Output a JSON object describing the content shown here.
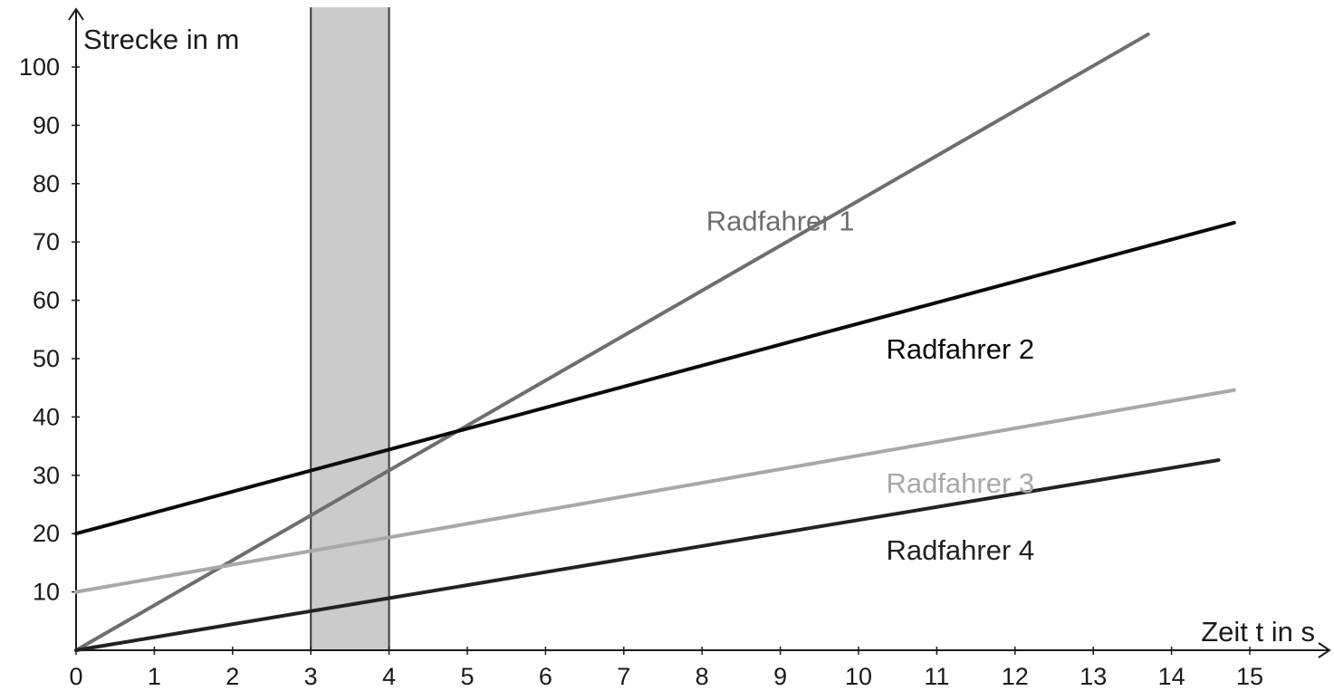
{
  "chart_data": {
    "type": "line",
    "xlabel": "Zeit t in s",
    "ylabel": "Strecke in m",
    "xlim": [
      0,
      16
    ],
    "ylim": [
      0,
      110
    ],
    "x_ticks": [
      0,
      1,
      2,
      3,
      4,
      5,
      6,
      7,
      8,
      9,
      10,
      11,
      12,
      13,
      14,
      15
    ],
    "y_ticks": [
      10,
      20,
      30,
      40,
      50,
      60,
      70,
      80,
      90,
      100
    ],
    "grid": false,
    "highlight_band": {
      "x_from": 3,
      "x_to": 4,
      "color": "#cbcbcb"
    },
    "series": [
      {
        "name": "Radfahrer 1",
        "color": "#6e6e6e",
        "points": [
          [
            0,
            0
          ],
          [
            13.7,
            105.6
          ]
        ],
        "label_at": [
          9,
          72
        ]
      },
      {
        "name": "Radfahrer 2",
        "color": "#0a0a0a",
        "points": [
          [
            0,
            20
          ],
          [
            14.8,
            73.3
          ]
        ],
        "label_at": [
          11.3,
          50
        ]
      },
      {
        "name": "Radfahrer 3",
        "color": "#a8a8a8",
        "points": [
          [
            0,
            10
          ],
          [
            14.8,
            44.6
          ]
        ],
        "label_at": [
          11.3,
          27
        ]
      },
      {
        "name": "Radfahrer 4",
        "color": "#222222",
        "points": [
          [
            0,
            0
          ],
          [
            14.6,
            32.6
          ]
        ],
        "label_at": [
          11.3,
          15.5
        ]
      }
    ]
  }
}
